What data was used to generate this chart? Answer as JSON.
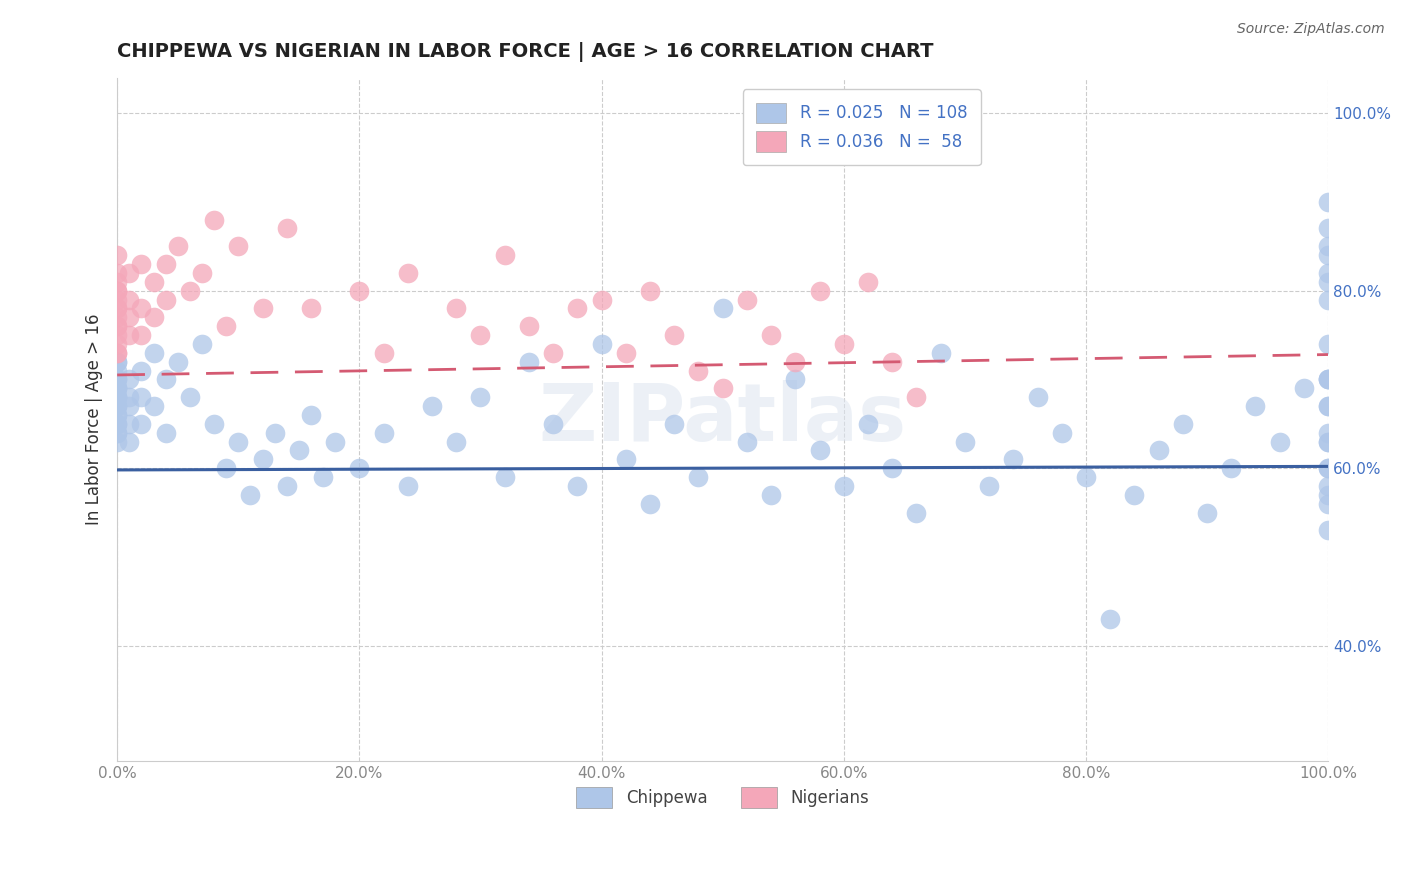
{
  "title": "CHIPPEWA VS NIGERIAN IN LABOR FORCE | AGE > 16 CORRELATION CHART",
  "source": "Source: ZipAtlas.com",
  "ylabel": "In Labor Force | Age > 16",
  "xlim": [
    0.0,
    1.0
  ],
  "ylim": [
    0.27,
    1.04
  ],
  "x_ticks": [
    0.0,
    0.2,
    0.4,
    0.6,
    0.8,
    1.0
  ],
  "x_tick_labels": [
    "0.0%",
    "20.0%",
    "40.0%",
    "60.0%",
    "80.0%",
    "100.0%"
  ],
  "y_ticks": [
    0.4,
    0.6,
    0.8,
    1.0
  ],
  "y_tick_labels": [
    "40.0%",
    "60.0%",
    "80.0%",
    "100.0%"
  ],
  "legend_r_chippewa": "R = 0.025",
  "legend_n_chippewa": "N = 108",
  "legend_r_nigerian": "R = 0.036",
  "legend_n_nigerian": "N =  58",
  "chippewa_color": "#aec6e8",
  "nigerian_color": "#f4a7b9",
  "trend_chippewa_color": "#3a5fa0",
  "trend_nigerian_color": "#d45a72",
  "watermark": "ZIPatlas",
  "label_color": "#4472c4",
  "chippewa_x": [
    0.0,
    0.0,
    0.0,
    0.0,
    0.0,
    0.0,
    0.0,
    0.0,
    0.0,
    0.0,
    0.0,
    0.0,
    0.0,
    0.0,
    0.0,
    0.0,
    0.0,
    0.0,
    0.0,
    0.0,
    0.01,
    0.01,
    0.01,
    0.01,
    0.01,
    0.02,
    0.02,
    0.02,
    0.03,
    0.03,
    0.04,
    0.04,
    0.05,
    0.06,
    0.07,
    0.08,
    0.09,
    0.1,
    0.11,
    0.12,
    0.13,
    0.14,
    0.15,
    0.16,
    0.17,
    0.18,
    0.2,
    0.22,
    0.24,
    0.26,
    0.28,
    0.3,
    0.32,
    0.34,
    0.36,
    0.38,
    0.4,
    0.42,
    0.44,
    0.46,
    0.48,
    0.5,
    0.52,
    0.54,
    0.56,
    0.58,
    0.6,
    0.62,
    0.64,
    0.66,
    0.68,
    0.7,
    0.72,
    0.74,
    0.76,
    0.78,
    0.8,
    0.82,
    0.84,
    0.86,
    0.88,
    0.9,
    0.92,
    0.94,
    0.96,
    0.98,
    1.0,
    1.0,
    1.0,
    1.0,
    1.0,
    1.0,
    1.0,
    1.0,
    1.0,
    1.0,
    1.0,
    1.0,
    1.0,
    1.0,
    1.0,
    1.0,
    1.0,
    1.0,
    1.0,
    1.0,
    1.0,
    1.0
  ],
  "chippewa_y": [
    0.69,
    0.68,
    0.7,
    0.66,
    0.67,
    0.72,
    0.65,
    0.71,
    0.69,
    0.64,
    0.72,
    0.68,
    0.67,
    0.7,
    0.63,
    0.65,
    0.68,
    0.66,
    0.64,
    0.69,
    0.7,
    0.67,
    0.65,
    0.68,
    0.63,
    0.71,
    0.68,
    0.65,
    0.73,
    0.67,
    0.7,
    0.64,
    0.72,
    0.68,
    0.74,
    0.65,
    0.6,
    0.63,
    0.57,
    0.61,
    0.64,
    0.58,
    0.62,
    0.66,
    0.59,
    0.63,
    0.6,
    0.64,
    0.58,
    0.67,
    0.63,
    0.68,
    0.59,
    0.72,
    0.65,
    0.58,
    0.74,
    0.61,
    0.56,
    0.65,
    0.59,
    0.78,
    0.63,
    0.57,
    0.7,
    0.62,
    0.58,
    0.65,
    0.6,
    0.55,
    0.73,
    0.63,
    0.58,
    0.61,
    0.68,
    0.64,
    0.59,
    0.43,
    0.57,
    0.62,
    0.65,
    0.55,
    0.6,
    0.67,
    0.63,
    0.69,
    0.82,
    0.57,
    0.6,
    0.63,
    0.67,
    0.7,
    0.53,
    0.63,
    0.58,
    0.7,
    0.74,
    0.56,
    0.6,
    0.64,
    0.67,
    0.7,
    0.79,
    0.84,
    0.9,
    0.81,
    0.87,
    0.85
  ],
  "nigerian_x": [
    0.0,
    0.0,
    0.0,
    0.0,
    0.0,
    0.0,
    0.0,
    0.0,
    0.0,
    0.0,
    0.0,
    0.0,
    0.0,
    0.0,
    0.0,
    0.01,
    0.01,
    0.01,
    0.01,
    0.02,
    0.02,
    0.02,
    0.03,
    0.03,
    0.04,
    0.04,
    0.05,
    0.06,
    0.07,
    0.08,
    0.09,
    0.1,
    0.12,
    0.14,
    0.16,
    0.2,
    0.22,
    0.24,
    0.28,
    0.3,
    0.32,
    0.34,
    0.36,
    0.38,
    0.4,
    0.42,
    0.44,
    0.46,
    0.48,
    0.5,
    0.52,
    0.54,
    0.56,
    0.58,
    0.6,
    0.62,
    0.64,
    0.66
  ],
  "nigerian_y": [
    0.8,
    0.76,
    0.82,
    0.75,
    0.78,
    0.84,
    0.73,
    0.79,
    0.77,
    0.81,
    0.73,
    0.76,
    0.8,
    0.74,
    0.78,
    0.82,
    0.79,
    0.75,
    0.77,
    0.83,
    0.78,
    0.75,
    0.81,
    0.77,
    0.83,
    0.79,
    0.85,
    0.8,
    0.82,
    0.88,
    0.76,
    0.85,
    0.78,
    0.87,
    0.78,
    0.8,
    0.73,
    0.82,
    0.78,
    0.75,
    0.84,
    0.76,
    0.73,
    0.78,
    0.79,
    0.73,
    0.8,
    0.75,
    0.71,
    0.69,
    0.79,
    0.75,
    0.72,
    0.8,
    0.74,
    0.81,
    0.72,
    0.68
  ],
  "trend_chip_y0": 0.598,
  "trend_chip_y1": 0.602,
  "trend_nig_y0": 0.705,
  "trend_nig_y1": 0.728
}
